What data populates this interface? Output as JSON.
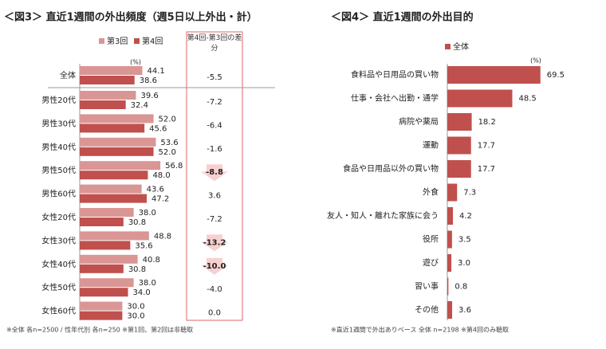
{
  "chart_data": [
    {
      "type": "grouped-hbar",
      "title": "＜図3＞ 直近1週間の外出頻度（週5日以上外出・計）",
      "unit": "(%)",
      "categories": [
        "全体",
        "男性20代",
        "男性30代",
        "男性40代",
        "男性50代",
        "男性60代",
        "女性20代",
        "女性30代",
        "女性40代",
        "女性50代",
        "女性60代"
      ],
      "series": [
        {
          "name": "第3回",
          "color": "#d99694",
          "values": [
            44.1,
            39.6,
            52.0,
            53.6,
            56.8,
            43.6,
            38.0,
            48.8,
            40.8,
            38.0,
            30.0
          ],
          "value_labels": [
            "44.1",
            "39.6",
            "52.0",
            "53.6",
            "56.8",
            "43.6",
            "38.0",
            "48.8",
            "40.8",
            "38.0",
            "30.0"
          ]
        },
        {
          "name": "第4回",
          "color": "#c0504d",
          "values": [
            38.6,
            32.4,
            45.6,
            52.0,
            48.0,
            47.2,
            30.8,
            35.6,
            30.8,
            34.0,
            30.0
          ],
          "value_labels": [
            "38.6",
            "32.4",
            "45.6",
            "52.0",
            "48.0",
            "47.2",
            "30.8",
            "35.6",
            "30.8",
            "34.0",
            "30.0"
          ]
        }
      ],
      "differences": {
        "label": "第4回-第3回の差分",
        "values": [
          -5.5,
          -7.2,
          -6.4,
          -1.6,
          -8.8,
          3.6,
          -7.2,
          -13.2,
          -10.0,
          -4.0,
          0.0
        ],
        "value_labels": [
          "-5.5",
          "-7.2",
          "-6.4",
          "-1.6",
          "-8.8",
          "3.6",
          "-7.2",
          "-13.2",
          "-10.0",
          "-4.0",
          "0.0"
        ]
      },
      "footnote": "※全体 各n=2500 / 性年代別 各n=250 ※第1回、第2回は非聴取"
    },
    {
      "type": "hbar",
      "title": "＜図4＞ 直近1週間の外出目的",
      "unit": "(%)",
      "categories": [
        "食料品や日用品の買い物",
        "仕事・会社へ出勤・通学",
        "病院や薬局",
        "運動",
        "食品や日用品以外の買い物",
        "外食",
        "友人・知人・離れた家族に会う",
        "役所",
        "遊び",
        "習い事",
        "その他"
      ],
      "series": [
        {
          "name": "全体",
          "color": "#c0504d",
          "values": [
            69.5,
            48.5,
            18.2,
            17.7,
            17.7,
            7.3,
            4.2,
            3.5,
            3.0,
            0.8,
            3.6
          ],
          "value_labels": [
            "69.5",
            "48.5",
            "18.2",
            "17.7",
            "17.7",
            "7.3",
            "4.2",
            "3.5",
            "3.0",
            "0.8",
            "3.6"
          ]
        }
      ],
      "footnote": "※直近1週間で外出ありベース 全体 n=2198 ※第4回のみ聴取"
    }
  ]
}
